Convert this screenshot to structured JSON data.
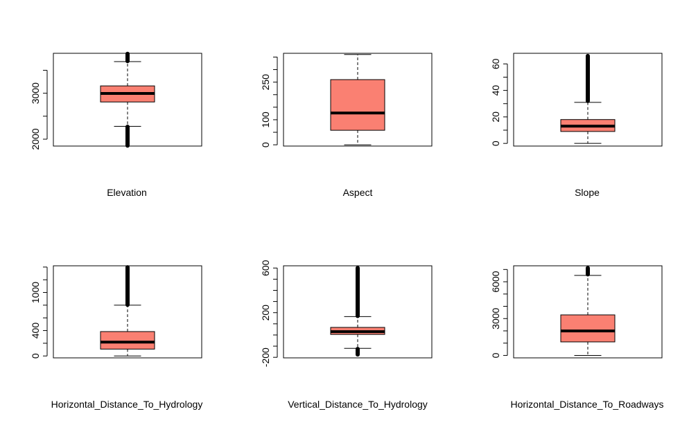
{
  "colors": {
    "box_fill": "#fa8072",
    "stroke": "#000000",
    "background": "#ffffff"
  },
  "chart_data": [
    {
      "type": "boxplot",
      "xlabel": "Elevation",
      "ylim": [
        1850,
        3870
      ],
      "yticks": [
        2000,
        3000
      ],
      "minor_tick_step": 500,
      "tick_labels": [
        "2000",
        "3000"
      ],
      "box": {
        "whisker_low": 2280,
        "q1": 2810,
        "median": 2995,
        "q3": 3160,
        "whisker_high": 3690
      },
      "outliers_low": [
        1860,
        2270
      ],
      "outliers_high": [
        3700,
        3858
      ]
    },
    {
      "type": "boxplot",
      "xlabel": "Aspect",
      "ylim": [
        -5,
        365
      ],
      "yticks": [
        0,
        100,
        250
      ],
      "minor_tick_step": 50,
      "tick_labels": [
        "0",
        "100",
        "250"
      ],
      "box": {
        "whisker_low": 0,
        "q1": 58,
        "median": 127,
        "q3": 260,
        "whisker_high": 360
      },
      "outliers_low": null,
      "outliers_high": null
    },
    {
      "type": "boxplot",
      "xlabel": "Slope",
      "ylim": [
        -2,
        68
      ],
      "yticks": [
        0,
        20,
        40,
        60
      ],
      "minor_tick_step": 10,
      "tick_labels": [
        "0",
        "20",
        "40",
        "60"
      ],
      "box": {
        "whisker_low": 0,
        "q1": 9,
        "median": 13,
        "q3": 18,
        "whisker_high": 31
      },
      "outliers_low": null,
      "outliers_high": [
        32,
        66
      ]
    },
    {
      "type": "boxplot",
      "xlabel": "Horizontal_Distance_To_Hydrology",
      "ylim": [
        -30,
        1420
      ],
      "yticks": [
        0,
        400,
        1000
      ],
      "minor_tick_step": 200,
      "tick_labels": [
        "0",
        "400",
        "1000"
      ],
      "box": {
        "whisker_low": 0,
        "q1": 108,
        "median": 218,
        "q3": 384,
        "whisker_high": 800
      },
      "outliers_low": null,
      "outliers_high": [
        805,
        1397
      ]
    },
    {
      "type": "boxplot",
      "xlabel": "Vertical_Distance_To_Hydrology",
      "ylim": [
        -205,
        620
      ],
      "yticks": [
        -200,
        200,
        600
      ],
      "minor_tick_step": 100,
      "tick_labels": [
        "-200",
        "200",
        "600"
      ],
      "box": {
        "whisker_low": -120,
        "q1": 5,
        "median": 30,
        "q3": 68,
        "whisker_high": 165
      },
      "outliers_low": [
        -175,
        -125
      ],
      "outliers_high": [
        170,
        601
      ]
    },
    {
      "type": "boxplot",
      "xlabel": "Horizontal_Distance_To_Roadways",
      "ylim": [
        -200,
        7300
      ],
      "yticks": [
        0,
        3000,
        6000
      ],
      "minor_tick_step": 1000,
      "tick_labels": [
        "0",
        "3000",
        "6000"
      ],
      "box": {
        "whisker_low": 0,
        "q1": 1100,
        "median": 1990,
        "q3": 3300,
        "whisker_high": 6520
      },
      "outliers_low": null,
      "outliers_high": [
        6600,
        7120
      ]
    }
  ]
}
